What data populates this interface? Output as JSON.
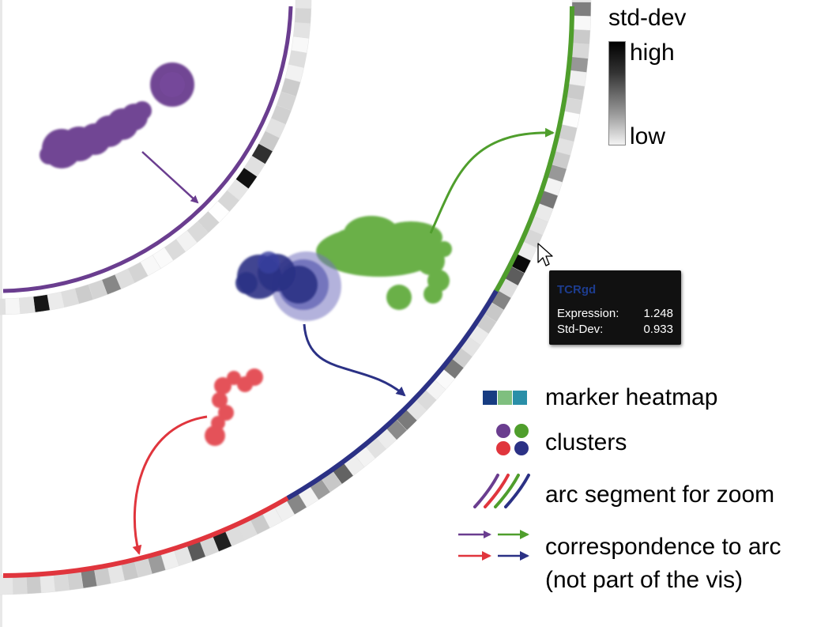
{
  "legend": {
    "std_dev_title": "std-dev",
    "std_dev_high": "high",
    "std_dev_low": "low",
    "marker_heatmap": "marker heatmap",
    "clusters": "clusters",
    "arc_segment": "arc segment for zoom",
    "correspondence_line1": "correspondence to arc",
    "correspondence_line2": "(not part of the vis)"
  },
  "tooltip": {
    "marker": "TCRgd",
    "expression_label": "Expression:",
    "expression_value": "1.248",
    "stddev_label": "Std-Dev:",
    "stddev_value": "0.933"
  },
  "colors": {
    "purple": "#6a3d8f",
    "green": "#4f9e2c",
    "blue": "#2b3185",
    "red": "#e0353d",
    "heatmap_dark_blue": "#173c82",
    "heatmap_light_green": "#7fbf7f",
    "heatmap_teal": "#2a8fa8",
    "tooltip_title": "#1d3c8e"
  },
  "icons": [
    "mouse-cursor-icon"
  ]
}
